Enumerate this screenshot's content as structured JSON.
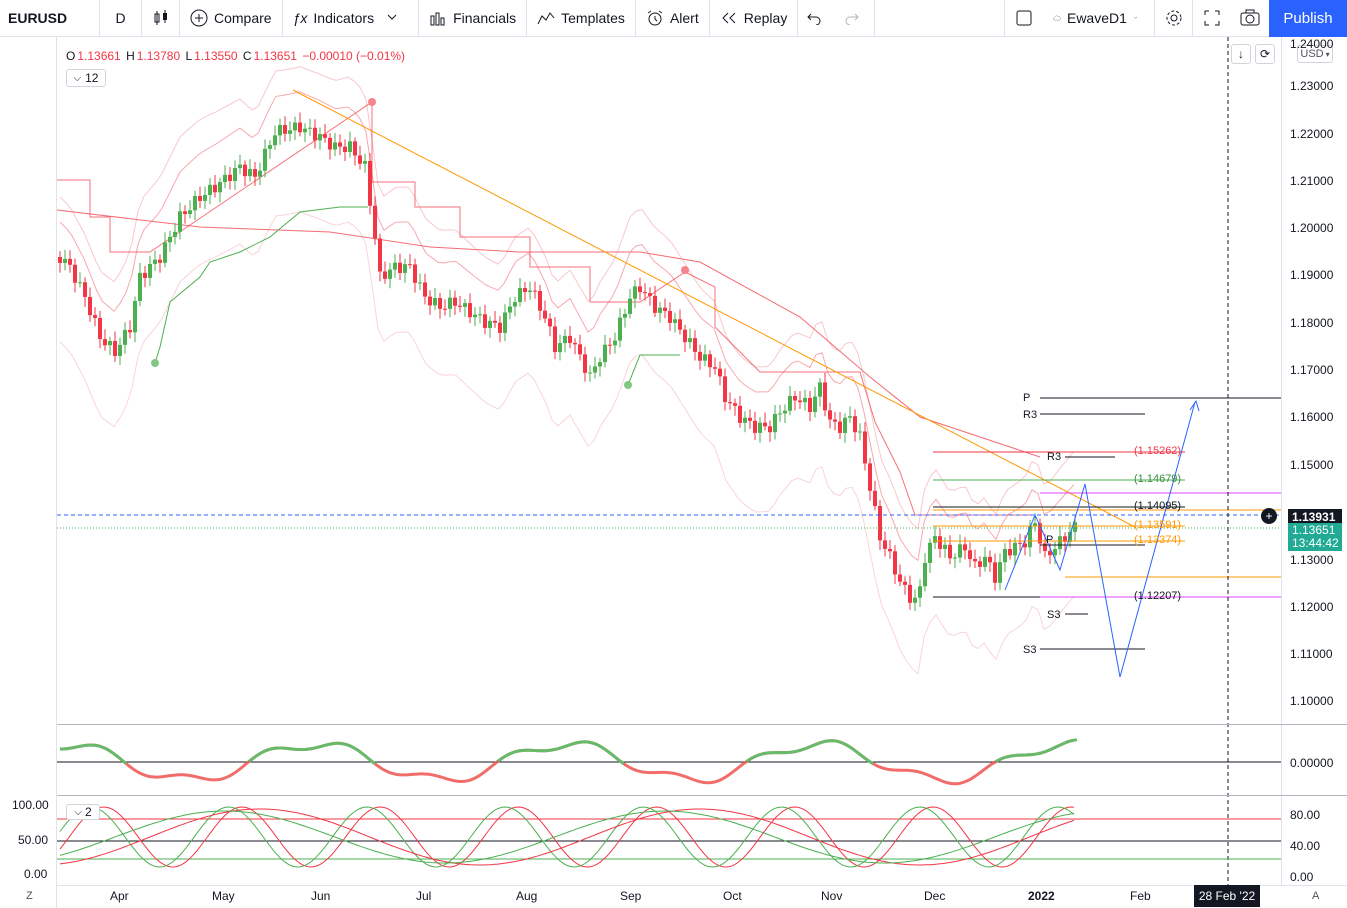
{
  "toolbar": {
    "symbol": "EURUSD",
    "interval": "D",
    "compare": "Compare",
    "indicators": "Indicators",
    "financials": "Financials",
    "templates": "Templates",
    "alert": "Alert",
    "replay": "Replay",
    "layout_name": "EwaveD1",
    "publish": "Publish"
  },
  "legend": {
    "o_key": "O",
    "o_val": "1.13661",
    "h_key": "H",
    "h_val": "1.13780",
    "l_key": "L",
    "l_val": "1.13550",
    "c_key": "C",
    "c_val": "1.13651",
    "change": "−0.00010 (−0.01%)",
    "collapse_count": "12",
    "osc_collapse_count": "2"
  },
  "price_axis": {
    "currency": "USD",
    "ticks": [
      "1.24000",
      "1.23000",
      "1.22000",
      "1.21000",
      "1.20000",
      "1.19000",
      "1.18000",
      "1.17000",
      "1.16000",
      "1.15000",
      "1.13000",
      "1.12000",
      "1.11000",
      "1.10000"
    ],
    "crosshair_price": "1.13931",
    "last_price": "1.13651",
    "countdown": "13:44:42",
    "osc1_zero": "0.00000",
    "osc2_ticks": [
      "80.00",
      "40.00",
      "0.00"
    ]
  },
  "osc_left_axis": [
    "100.00",
    "50.00",
    "0.00"
  ],
  "time_axis": {
    "months": [
      "Apr",
      "May",
      "Jun",
      "Jul",
      "Aug",
      "Sep",
      "Oct",
      "Nov",
      "Dec",
      "2022",
      "Feb"
    ],
    "crosshair_date": "28 Feb '22",
    "left_corner": "Z",
    "right_corner": "A"
  },
  "levels": {
    "p": "P",
    "r3a": "R3",
    "r3b": "R3",
    "s3a": "S3",
    "s3b": "S3",
    "l1": "(1.15262)",
    "l2": "(1.14679)",
    "l3": "(1.14095)",
    "l4": "(1.13591)",
    "l5": "(1.13374)",
    "l6": "(1.12207)",
    "pivot_marker": "P"
  },
  "colors": {
    "up": "#4caf50",
    "down": "#f23645",
    "accent": "#2962ff",
    "trend": "#ff9800"
  }
}
